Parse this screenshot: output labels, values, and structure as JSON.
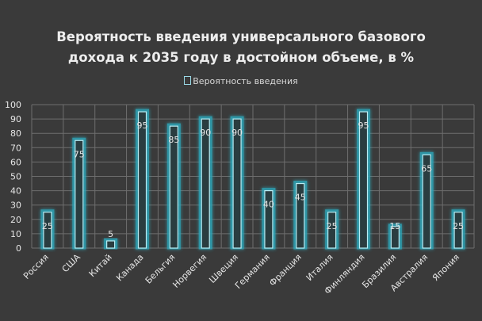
{
  "colors": {
    "background": "#3a3a3a",
    "grid": "#6e6e6e",
    "bar_fill": "#2a3d40",
    "bar_stroke": "#b8eef5",
    "bar_glow": "#2fa6b8",
    "text": "#e6e6e6"
  },
  "chart_data": {
    "type": "bar",
    "title_lines": [
      "Вероятность введения универсального базового",
      "дохода к 2035 году в достойном объеме, в %"
    ],
    "legend": "Вероятность введения",
    "categories": [
      "Россия",
      "США",
      "Китай",
      "Канада",
      "Бельгия",
      "Норвегия",
      "Швеция",
      "Германия",
      "Франция",
      "Италия",
      "Финляндия",
      "Бразилия",
      "Австралия",
      "Япония"
    ],
    "series": [
      {
        "name": "Вероятность введения",
        "values": [
          25,
          75,
          5,
          95,
          85,
          90,
          90,
          40,
          45,
          25,
          95,
          15,
          65,
          25
        ]
      }
    ],
    "data_labels": [
      "25",
      "75",
      "5",
      "95",
      "85",
      "90",
      "90",
      "40",
      "45",
      "25",
      "95",
      "15",
      "65",
      "25"
    ],
    "y_ticks": [
      "0",
      "10",
      "20",
      "30",
      "40",
      "50",
      "60",
      "70",
      "80",
      "90",
      "100"
    ],
    "ylim": [
      0,
      100
    ],
    "grid": true,
    "legend_position": "top"
  }
}
